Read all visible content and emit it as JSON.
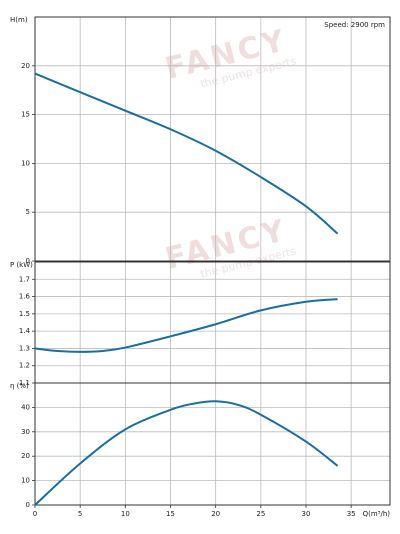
{
  "watermark": {
    "brand": "FANCY",
    "tagline": "the pump experts"
  },
  "chart_data": [
    {
      "type": "line",
      "y_label": "H(m)",
      "annotation": "Speed: 2900 rpm",
      "color": "#1a6fa0",
      "x": [
        0,
        5,
        10,
        15,
        20,
        25,
        30,
        33.5
      ],
      "values": [
        19.2,
        17.3,
        15.4,
        13.5,
        11.3,
        8.6,
        5.6,
        2.8
      ],
      "xlim": [
        0,
        39.3
      ],
      "ylim": [
        0,
        25
      ],
      "yticks": [
        0,
        5,
        10,
        15,
        20
      ],
      "grid": true
    },
    {
      "type": "line",
      "y_label": "P (kW)",
      "color": "#1a6fa0",
      "x": [
        0,
        2.5,
        5,
        7.5,
        10,
        15,
        20,
        25,
        30,
        33.5
      ],
      "values": [
        1.3,
        1.285,
        1.28,
        1.285,
        1.305,
        1.37,
        1.44,
        1.52,
        1.57,
        1.585
      ],
      "xlim": [
        0,
        39.3
      ],
      "ylim": [
        1.1,
        1.8
      ],
      "yticks": [
        1.1,
        1.2,
        1.3,
        1.4,
        1.5,
        1.6,
        1.7
      ],
      "grid": true
    },
    {
      "type": "line",
      "y_label": "η (%)",
      "x_label": "Q(m³/h)",
      "color": "#1a6fa0",
      "x": [
        0,
        5,
        10,
        15,
        17.5,
        20,
        22.5,
        25,
        30,
        33.5
      ],
      "values": [
        0,
        17,
        31,
        39,
        41.5,
        42.5,
        41,
        37,
        26,
        16
      ],
      "xlim": [
        0,
        39.3
      ],
      "xticks": [
        0,
        5,
        10,
        15,
        20,
        25,
        30,
        35
      ],
      "ylim": [
        0,
        50
      ],
      "yticks": [
        0,
        10,
        20,
        30,
        40
      ],
      "grid": true
    }
  ]
}
